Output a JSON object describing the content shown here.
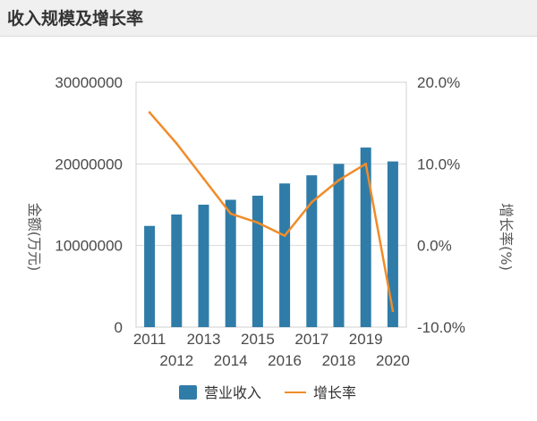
{
  "header": {
    "title": "收入规模及增长率"
  },
  "colors": {
    "bar": "#2f7ca8",
    "line": "#f08c2a",
    "grid": "#dadada",
    "frame": "#d0d0d0"
  },
  "chart_data": {
    "type": "bar",
    "title": "",
    "categories": [
      "2011",
      "2012",
      "2013",
      "2014",
      "2015",
      "2016",
      "2017",
      "2018",
      "2019",
      "2020"
    ],
    "series": [
      {
        "name": "营业收入",
        "type": "bar",
        "axis": "left",
        "values": [
          12400000,
          13800000,
          15000000,
          15600000,
          16100000,
          17600000,
          18600000,
          20000000,
          22000000,
          20300000
        ]
      },
      {
        "name": "增长率",
        "type": "line",
        "axis": "right",
        "values": [
          16.3,
          12.5,
          8.2,
          3.9,
          2.8,
          1.2,
          5.3,
          8.0,
          10.0,
          -8.0
        ]
      }
    ],
    "ylabel": "金额(万元)",
    "y2label": "增长率(%)",
    "ylim": [
      0,
      30000000
    ],
    "y2lim": [
      -10,
      20
    ],
    "y_ticks": [
      "0",
      "10000000",
      "20000000",
      "30000000"
    ],
    "y2_ticks": [
      "-10.0%",
      "0.0%",
      "10.0%",
      "20.0%"
    ],
    "grid": true,
    "legend_position": "bottom-center"
  }
}
